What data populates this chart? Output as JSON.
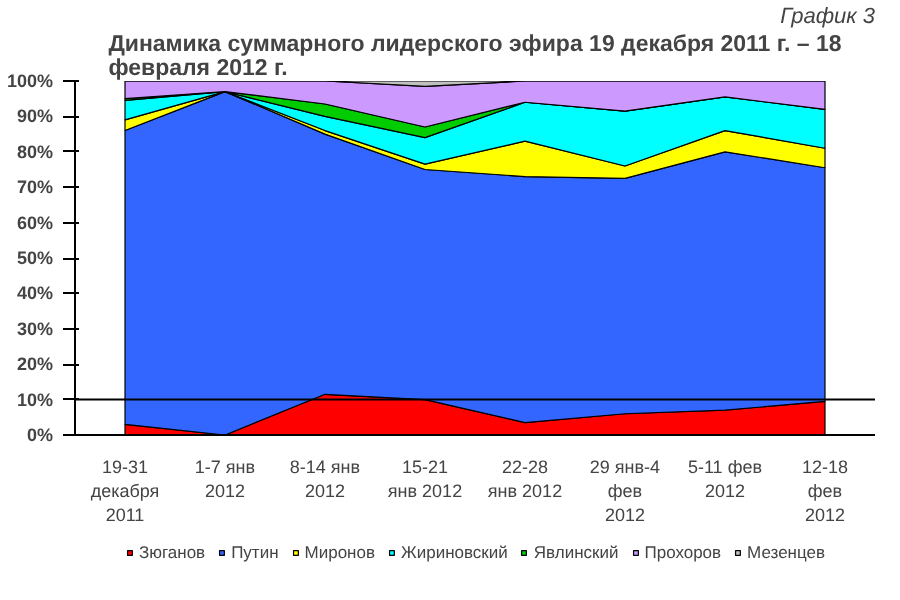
{
  "chart_data": {
    "type": "area",
    "stacked": true,
    "title": "Динамика суммарного лидерского эфира 19 декабря 2011 г. – 18 февраля 2012 г.",
    "annotations": [
      "График 3"
    ],
    "categories": [
      "19-31\nдекабря\n2011",
      "1-7 янв\n2012",
      "8-14 янв\n2012",
      "15-21\nянв 2012",
      "22-28\nянв 2012",
      "29 янв-4\nфев\n2012",
      "5-11 фев\n2012",
      "12-18\nфев\n2012"
    ],
    "ylim": [
      0,
      100
    ],
    "yticks": [
      {
        "value": 0,
        "label": "0%"
      },
      {
        "value": 10,
        "label": "10%"
      },
      {
        "value": 20,
        "label": "20%"
      },
      {
        "value": 30,
        "label": "30%"
      },
      {
        "value": 40,
        "label": "40%"
      },
      {
        "value": 50,
        "label": "50%"
      },
      {
        "value": 60,
        "label": "60%"
      },
      {
        "value": 70,
        "label": "70%"
      },
      {
        "value": 80,
        "label": "80%"
      },
      {
        "value": 90,
        "label": "90%"
      },
      {
        "value": 100,
        "label": "100%"
      }
    ],
    "series": [
      {
        "name": "Зюганов",
        "color": "#ff0000",
        "values": [
          3,
          0,
          11.5,
          10,
          3.5,
          6,
          7,
          9.5
        ]
      },
      {
        "name": "Путин",
        "color": "#3366ff",
        "values": [
          83,
          97,
          73.5,
          65,
          69.5,
          66.5,
          73,
          66
        ]
      },
      {
        "name": "Миронов",
        "color": "#ffff00",
        "values": [
          3,
          0,
          1,
          1.5,
          10,
          3.5,
          6,
          5.5
        ]
      },
      {
        "name": "Жириновский",
        "color": "#00ffff",
        "values": [
          5.5,
          0,
          4,
          7.5,
          11,
          15.5,
          9.5,
          11
        ]
      },
      {
        "name": "Явлинский",
        "color": "#00cc00",
        "values": [
          0.5,
          0,
          3.5,
          3,
          0,
          0,
          0,
          0
        ]
      },
      {
        "name": "Прохоров",
        "color": "#cc99ff",
        "values": [
          5,
          3,
          6.5,
          11.5,
          6,
          8.5,
          4.5,
          8
        ]
      },
      {
        "name": "Мезенцев",
        "color": "#c0c0c0",
        "values": [
          0,
          0,
          0,
          1.5,
          0,
          0,
          0,
          0
        ]
      }
    ],
    "ref_lines": [
      {
        "axis": "y",
        "value": 10,
        "color": "#000000"
      }
    ],
    "legend": "bottom",
    "grid": false
  }
}
